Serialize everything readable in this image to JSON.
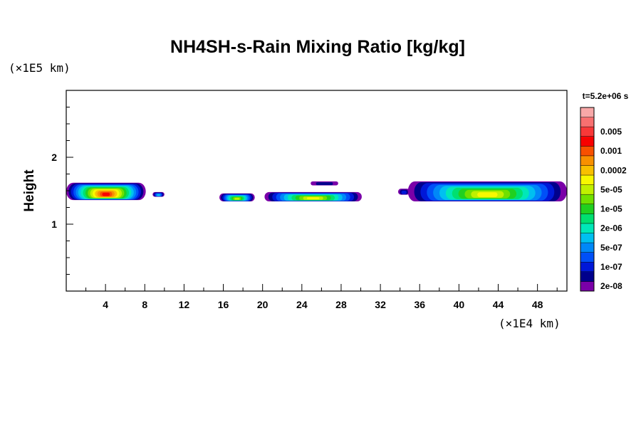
{
  "chart_data": {
    "type": "heatmap",
    "title": "NH4SH-s-Rain Mixing Ratio [kg/kg]",
    "xlabel": "",
    "ylabel": "Height",
    "x_unit": "(×1E4 km)",
    "y_unit": "(×1E5 km)",
    "time_label": "t=5.2e+06 s",
    "xlim": [
      0,
      51
    ],
    "ylim": [
      0,
      3
    ],
    "x_ticks": [
      4,
      8,
      12,
      16,
      20,
      24,
      28,
      32,
      36,
      40,
      44,
      48
    ],
    "x_tick_labels": [
      "4",
      "8",
      "12",
      "16",
      "20",
      "24",
      "28",
      "32",
      "36",
      "40",
      "44",
      "48"
    ],
    "y_ticks": [
      1,
      2
    ],
    "y_tick_labels": [
      "1",
      "2"
    ],
    "colorbar": {
      "colors": [
        "#7a00a8",
        "#00008c",
        "#0018d8",
        "#0050f8",
        "#0088f8",
        "#00c0f0",
        "#00e8b8",
        "#00e070",
        "#20d020",
        "#70e000",
        "#c0f000",
        "#f8f800",
        "#f8c000",
        "#f89000",
        "#f85000",
        "#f80000",
        "#f83838",
        "#f87070",
        "#f8a8a8"
      ],
      "labels": [
        "2e-08",
        "1e-07",
        "5e-07",
        "2e-06",
        "1e-05",
        "5e-05",
        "0.0002",
        "0.001",
        "0.005"
      ]
    },
    "regions": [
      {
        "x": [
          0.0,
          8.1
        ],
        "y": [
          1.36,
          1.62
        ],
        "peak": 15
      },
      {
        "x": [
          8.8,
          10.0
        ],
        "y": [
          1.41,
          1.48
        ],
        "peak": 5
      },
      {
        "x": [
          15.6,
          19.2
        ],
        "y": [
          1.34,
          1.46
        ],
        "peak": 10
      },
      {
        "x": [
          20.2,
          30.1
        ],
        "y": [
          1.34,
          1.48
        ],
        "peak": 11
      },
      {
        "x": [
          24.9,
          27.7
        ],
        "y": [
          1.58,
          1.64
        ],
        "peak": 1
      },
      {
        "x": [
          33.8,
          35.0
        ],
        "y": [
          1.44,
          1.53
        ],
        "peak": 2
      },
      {
        "x": [
          34.8,
          51.0
        ],
        "y": [
          1.34,
          1.64
        ],
        "peak": 11
      }
    ]
  }
}
